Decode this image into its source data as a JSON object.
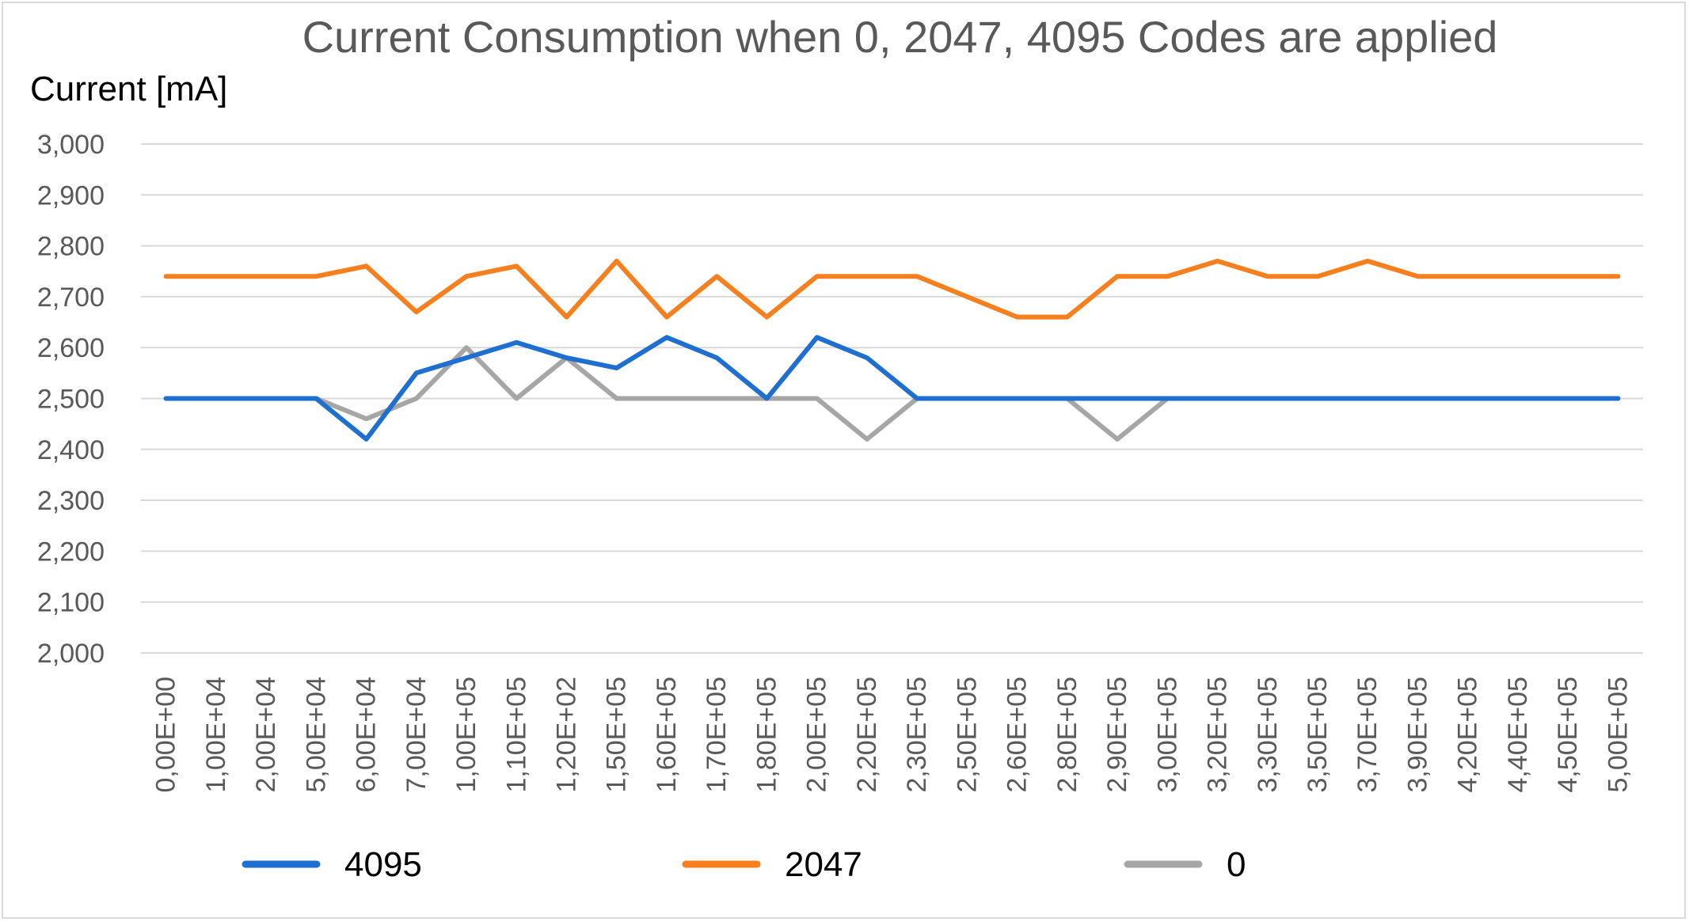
{
  "chart_data": {
    "type": "line",
    "title": "Current Consumption when 0, 2047, 4095 Codes are applied",
    "ylabel": "Current [mA]",
    "xlabel": "",
    "ylim": [
      2000,
      3000
    ],
    "yticks": [
      "3,000",
      "2,900",
      "2,800",
      "2,700",
      "2,600",
      "2,500",
      "2,400",
      "2,300",
      "2,200",
      "2,100",
      "2,000"
    ],
    "ytick_values": [
      3000,
      2900,
      2800,
      2700,
      2600,
      2500,
      2400,
      2300,
      2200,
      2100,
      2000
    ],
    "categories": [
      "0,00E+00",
      "1,00E+04",
      "2,00E+04",
      "5,00E+04",
      "6,00E+04",
      "7,00E+04",
      "1,00E+05",
      "1,10E+05",
      "1,20E+02",
      "1,50E+05",
      "1,60E+05",
      "1,70E+05",
      "1,80E+05",
      "2,00E+05",
      "2,20E+05",
      "2,30E+05",
      "2,50E+05",
      "2,60E+05",
      "2,80E+05",
      "2,90E+05",
      "3,00E+05",
      "3,20E+05",
      "3,30E+05",
      "3,50E+05",
      "3,70E+05",
      "3,90E+05",
      "4,20E+05",
      "4,40E+05",
      "4,50E+05",
      "5,00E+05"
    ],
    "grid": true,
    "legend_position": "bottom",
    "series": [
      {
        "name": "4095",
        "color": "#1f6fd0",
        "values": [
          2500,
          2500,
          2500,
          2500,
          2420,
          2550,
          2580,
          2610,
          2580,
          2560,
          2620,
          2580,
          2500,
          2620,
          2580,
          2500,
          2500,
          2500,
          2500,
          2500,
          2500,
          2500,
          2500,
          2500,
          2500,
          2500,
          2500,
          2500,
          2500,
          2500
        ]
      },
      {
        "name": "2047",
        "color": "#f77f1e",
        "values": [
          2740,
          2740,
          2740,
          2740,
          2760,
          2670,
          2740,
          2760,
          2660,
          2770,
          2660,
          2740,
          2660,
          2740,
          2740,
          2740,
          2700,
          2660,
          2660,
          2740,
          2740,
          2770,
          2740,
          2740,
          2770,
          2740,
          2740,
          2740,
          2740,
          2740
        ]
      },
      {
        "name": "0",
        "color": "#a6a6a6",
        "values": [
          2500,
          2500,
          2500,
          2500,
          2460,
          2500,
          2600,
          2500,
          2580,
          2500,
          2500,
          2500,
          2500,
          2500,
          2420,
          2500,
          2500,
          2500,
          2500,
          2420,
          2500,
          2500,
          2500,
          2500,
          2500,
          2500,
          2500,
          2500,
          2500,
          2500
        ]
      }
    ]
  }
}
